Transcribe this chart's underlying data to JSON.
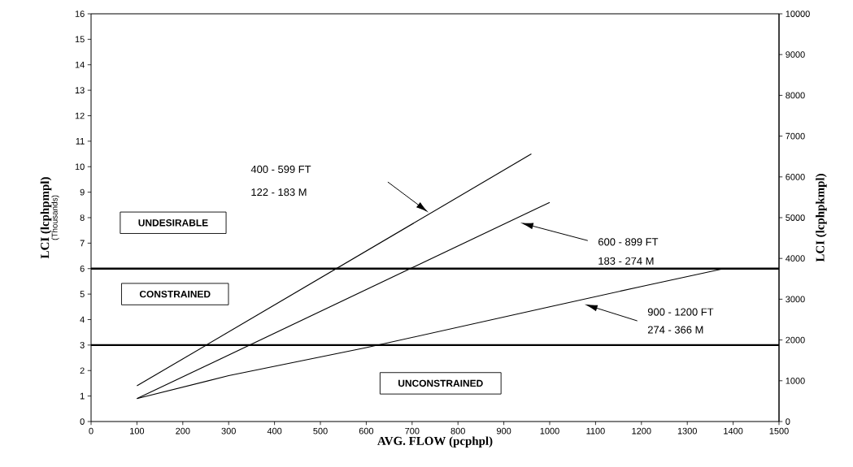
{
  "chart_data": {
    "type": "line",
    "xlabel": "AVG. FLOW (pcphpl)",
    "ylabel": "LCI (lcphpmpl)",
    "y2label": "LCI (lcphpkmpl)",
    "xlim": [
      0,
      1500
    ],
    "xticks": [
      0,
      100,
      200,
      300,
      400,
      500,
      600,
      700,
      800,
      900,
      1000,
      1100,
      1200,
      1300,
      1400,
      1500
    ],
    "ylim": [
      0,
      16
    ],
    "yticks": [
      0,
      1,
      2,
      3,
      4,
      5,
      6,
      7,
      8,
      9,
      10,
      11,
      12,
      13,
      14,
      15,
      16
    ],
    "y2lim": [
      0,
      10000
    ],
    "y2ticks": [
      0,
      1000,
      2000,
      3000,
      4000,
      5000,
      6000,
      7000,
      8000,
      9000,
      10000
    ],
    "series": [
      {
        "color": "#000000",
        "x": [
          100,
          960
        ],
        "values": [
          1.4,
          10.5
        ]
      },
      {
        "color": "#000000",
        "x": [
          100,
          1000
        ],
        "values": [
          0.9,
          8.6
        ]
      },
      {
        "color": "#000000",
        "x": [
          100,
          300,
          600,
          800,
          1000,
          1200,
          1380
        ],
        "values": [
          0.9,
          1.8,
          2.9,
          3.7,
          4.5,
          5.3,
          6.0
        ]
      }
    ],
    "ref_lines": [
      {
        "axis": "y",
        "value": 6,
        "color": "#000000"
      },
      {
        "axis": "y",
        "value": 3,
        "color": "#000000"
      }
    ],
    "annotations": [
      "400 - 599 FT",
      "122 - 183 M",
      "600 - 899 FT",
      "183 - 274 M",
      "900 - 1200 FT",
      "274 -  366 M",
      "UNDESIRABLE",
      "CONSTRAINED",
      "UNCONSTRAINED",
      "(Thousands)"
    ],
    "grid": false,
    "legend": false,
    "marker": "none",
    "line_style": "solid"
  }
}
